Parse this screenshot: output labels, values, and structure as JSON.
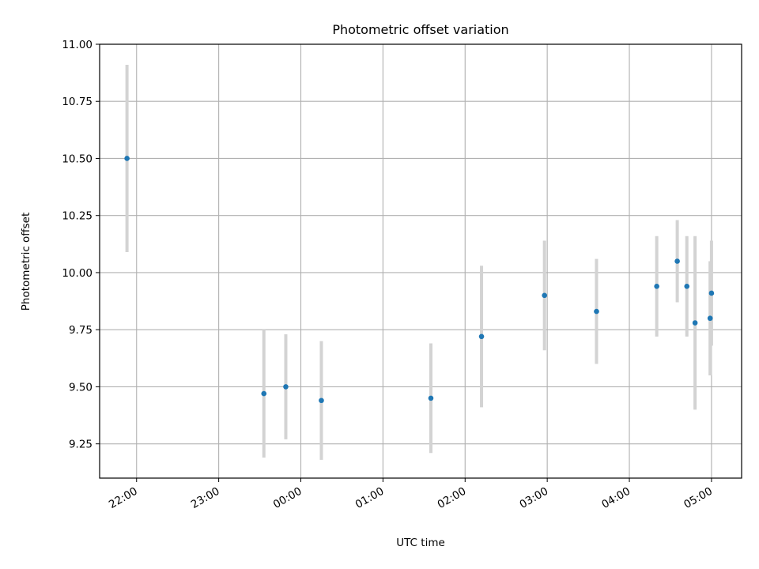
{
  "chart_data": {
    "type": "scatter",
    "title": "Photometric offset variation",
    "xlabel": "UTC time",
    "ylabel": "Photometric offset",
    "x_ticks": [
      "22:00",
      "23:00",
      "00:00",
      "01:00",
      "02:00",
      "03:00",
      "04:00",
      "05:00"
    ],
    "y_ticks": [
      "9.25",
      "9.50",
      "9.75",
      "10.00",
      "10.25",
      "10.50",
      "10.75",
      "11.00"
    ],
    "xlim": [
      "21:33",
      "05:22"
    ],
    "ylim": [
      9.1,
      11.0
    ],
    "grid": true,
    "point_color": "#1f77b4",
    "errorbar_color": "#d3d3d3",
    "points": [
      {
        "t": "21:53",
        "y": 10.5,
        "err": 0.41
      },
      {
        "t": "23:33",
        "y": 9.47,
        "err": 0.28
      },
      {
        "t": "23:49",
        "y": 9.5,
        "err": 0.23
      },
      {
        "t": "00:15",
        "y": 9.44,
        "err": 0.26
      },
      {
        "t": "01:35",
        "y": 9.45,
        "err": 0.24
      },
      {
        "t": "02:12",
        "y": 9.72,
        "err": 0.31
      },
      {
        "t": "02:58",
        "y": 9.9,
        "err": 0.24
      },
      {
        "t": "03:36",
        "y": 9.83,
        "err": 0.23
      },
      {
        "t": "04:20",
        "y": 9.94,
        "err": 0.22
      },
      {
        "t": "04:35",
        "y": 10.05,
        "err": 0.18
      },
      {
        "t": "04:42",
        "y": 9.94,
        "err": 0.22
      },
      {
        "t": "04:48",
        "y": 9.78,
        "err": 0.38
      },
      {
        "t": "04:59",
        "y": 9.8,
        "err": 0.25
      },
      {
        "t": "05:00",
        "y": 9.91,
        "err": 0.23
      }
    ]
  }
}
